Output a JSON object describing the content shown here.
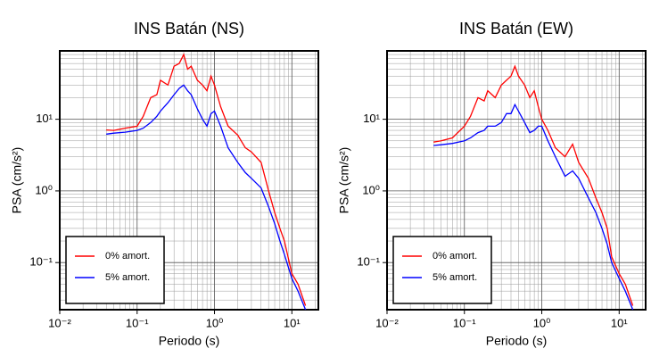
{
  "chart_data": [
    {
      "type": "line",
      "title": "INS Batán (NS)",
      "x_label": "Periodo (s)",
      "y_label": "PSA (cm/s²)",
      "x_scale": "log",
      "y_scale": "log",
      "grid": true,
      "minor_grid": true,
      "legend": "lower left",
      "xlim": [
        0.01,
        22
      ],
      "ylim": [
        0.022,
        90
      ],
      "xticks": [
        {
          "value": 0.01,
          "label": "10⁻²"
        },
        {
          "value": 0.1,
          "label": "10⁻¹"
        },
        {
          "value": 1,
          "label": "10⁰"
        },
        {
          "value": 10,
          "label": "10¹"
        }
      ],
      "yticks": [
        {
          "value": 0.1,
          "label": "10⁻¹"
        },
        {
          "value": 1,
          "label": "10⁰"
        },
        {
          "value": 10,
          "label": "10¹"
        }
      ],
      "x": [
        0.04,
        0.05,
        0.07,
        0.1,
        0.12,
        0.15,
        0.18,
        0.2,
        0.25,
        0.3,
        0.35,
        0.4,
        0.45,
        0.5,
        0.6,
        0.7,
        0.8,
        0.9,
        1.0,
        1.2,
        1.5,
        2.0,
        2.5,
        3.0,
        4.0,
        5.0,
        6.0,
        7.0,
        8.0,
        10,
        12,
        15
      ],
      "series": [
        {
          "name": "0% amort.",
          "color": "#ff0000",
          "values": [
            7.1,
            7,
            7.5,
            8,
            11,
            20,
            22,
            35,
            30,
            55,
            60,
            80,
            50,
            55,
            35,
            30,
            25,
            40,
            30,
            15,
            8,
            6,
            4,
            3.5,
            2.5,
            1.0,
            0.5,
            0.3,
            0.2,
            0.07,
            0.05,
            0.025
          ]
        },
        {
          "name": "5% amort.",
          "color": "#0000ff",
          "values": [
            6.2,
            6.4,
            6.6,
            7,
            7.5,
            9,
            11,
            13,
            17,
            22,
            27,
            30,
            25,
            22,
            14,
            10,
            8,
            12,
            13,
            8,
            4,
            2.5,
            1.8,
            1.5,
            1.1,
            0.6,
            0.35,
            0.2,
            0.13,
            0.06,
            0.04,
            0.022
          ]
        }
      ]
    },
    {
      "type": "line",
      "title": "INS Batán (EW)",
      "x_label": "Periodo (s)",
      "y_label": "PSA (cm/s²)",
      "x_scale": "log",
      "y_scale": "log",
      "grid": true,
      "minor_grid": true,
      "legend": "lower left",
      "xlim": [
        0.01,
        22
      ],
      "ylim": [
        0.022,
        90
      ],
      "xticks": [
        {
          "value": 0.01,
          "label": "10⁻²"
        },
        {
          "value": 0.1,
          "label": "10⁻¹"
        },
        {
          "value": 1,
          "label": "10⁰"
        },
        {
          "value": 10,
          "label": "10¹"
        }
      ],
      "yticks": [
        {
          "value": 0.1,
          "label": "10⁻¹"
        },
        {
          "value": 1,
          "label": "10⁰"
        },
        {
          "value": 10,
          "label": "10¹"
        }
      ],
      "x": [
        0.04,
        0.05,
        0.07,
        0.1,
        0.12,
        0.15,
        0.18,
        0.2,
        0.25,
        0.3,
        0.35,
        0.4,
        0.45,
        0.5,
        0.6,
        0.7,
        0.8,
        0.9,
        1.0,
        1.2,
        1.5,
        2.0,
        2.5,
        3.0,
        4.0,
        5.0,
        6.0,
        7.0,
        8.0,
        10,
        12,
        15
      ],
      "series": [
        {
          "name": "0% amort.",
          "color": "#ff0000",
          "values": [
            4.8,
            5,
            5.5,
            8,
            11,
            20,
            18,
            25,
            20,
            30,
            35,
            40,
            55,
            40,
            30,
            20,
            25,
            15,
            10,
            7,
            4,
            3,
            4.5,
            2.5,
            1.5,
            0.8,
            0.5,
            0.3,
            0.12,
            0.07,
            0.05,
            0.025
          ]
        },
        {
          "name": "5% amort.",
          "color": "#0000ff",
          "values": [
            4.3,
            4.4,
            4.6,
            5,
            5.5,
            6.5,
            7,
            8,
            8,
            9,
            12,
            12,
            16,
            13,
            9,
            6.5,
            7,
            8,
            8,
            5,
            3,
            1.6,
            1.9,
            1.5,
            0.8,
            0.5,
            0.3,
            0.18,
            0.1,
            0.06,
            0.04,
            0.022
          ]
        }
      ]
    }
  ]
}
